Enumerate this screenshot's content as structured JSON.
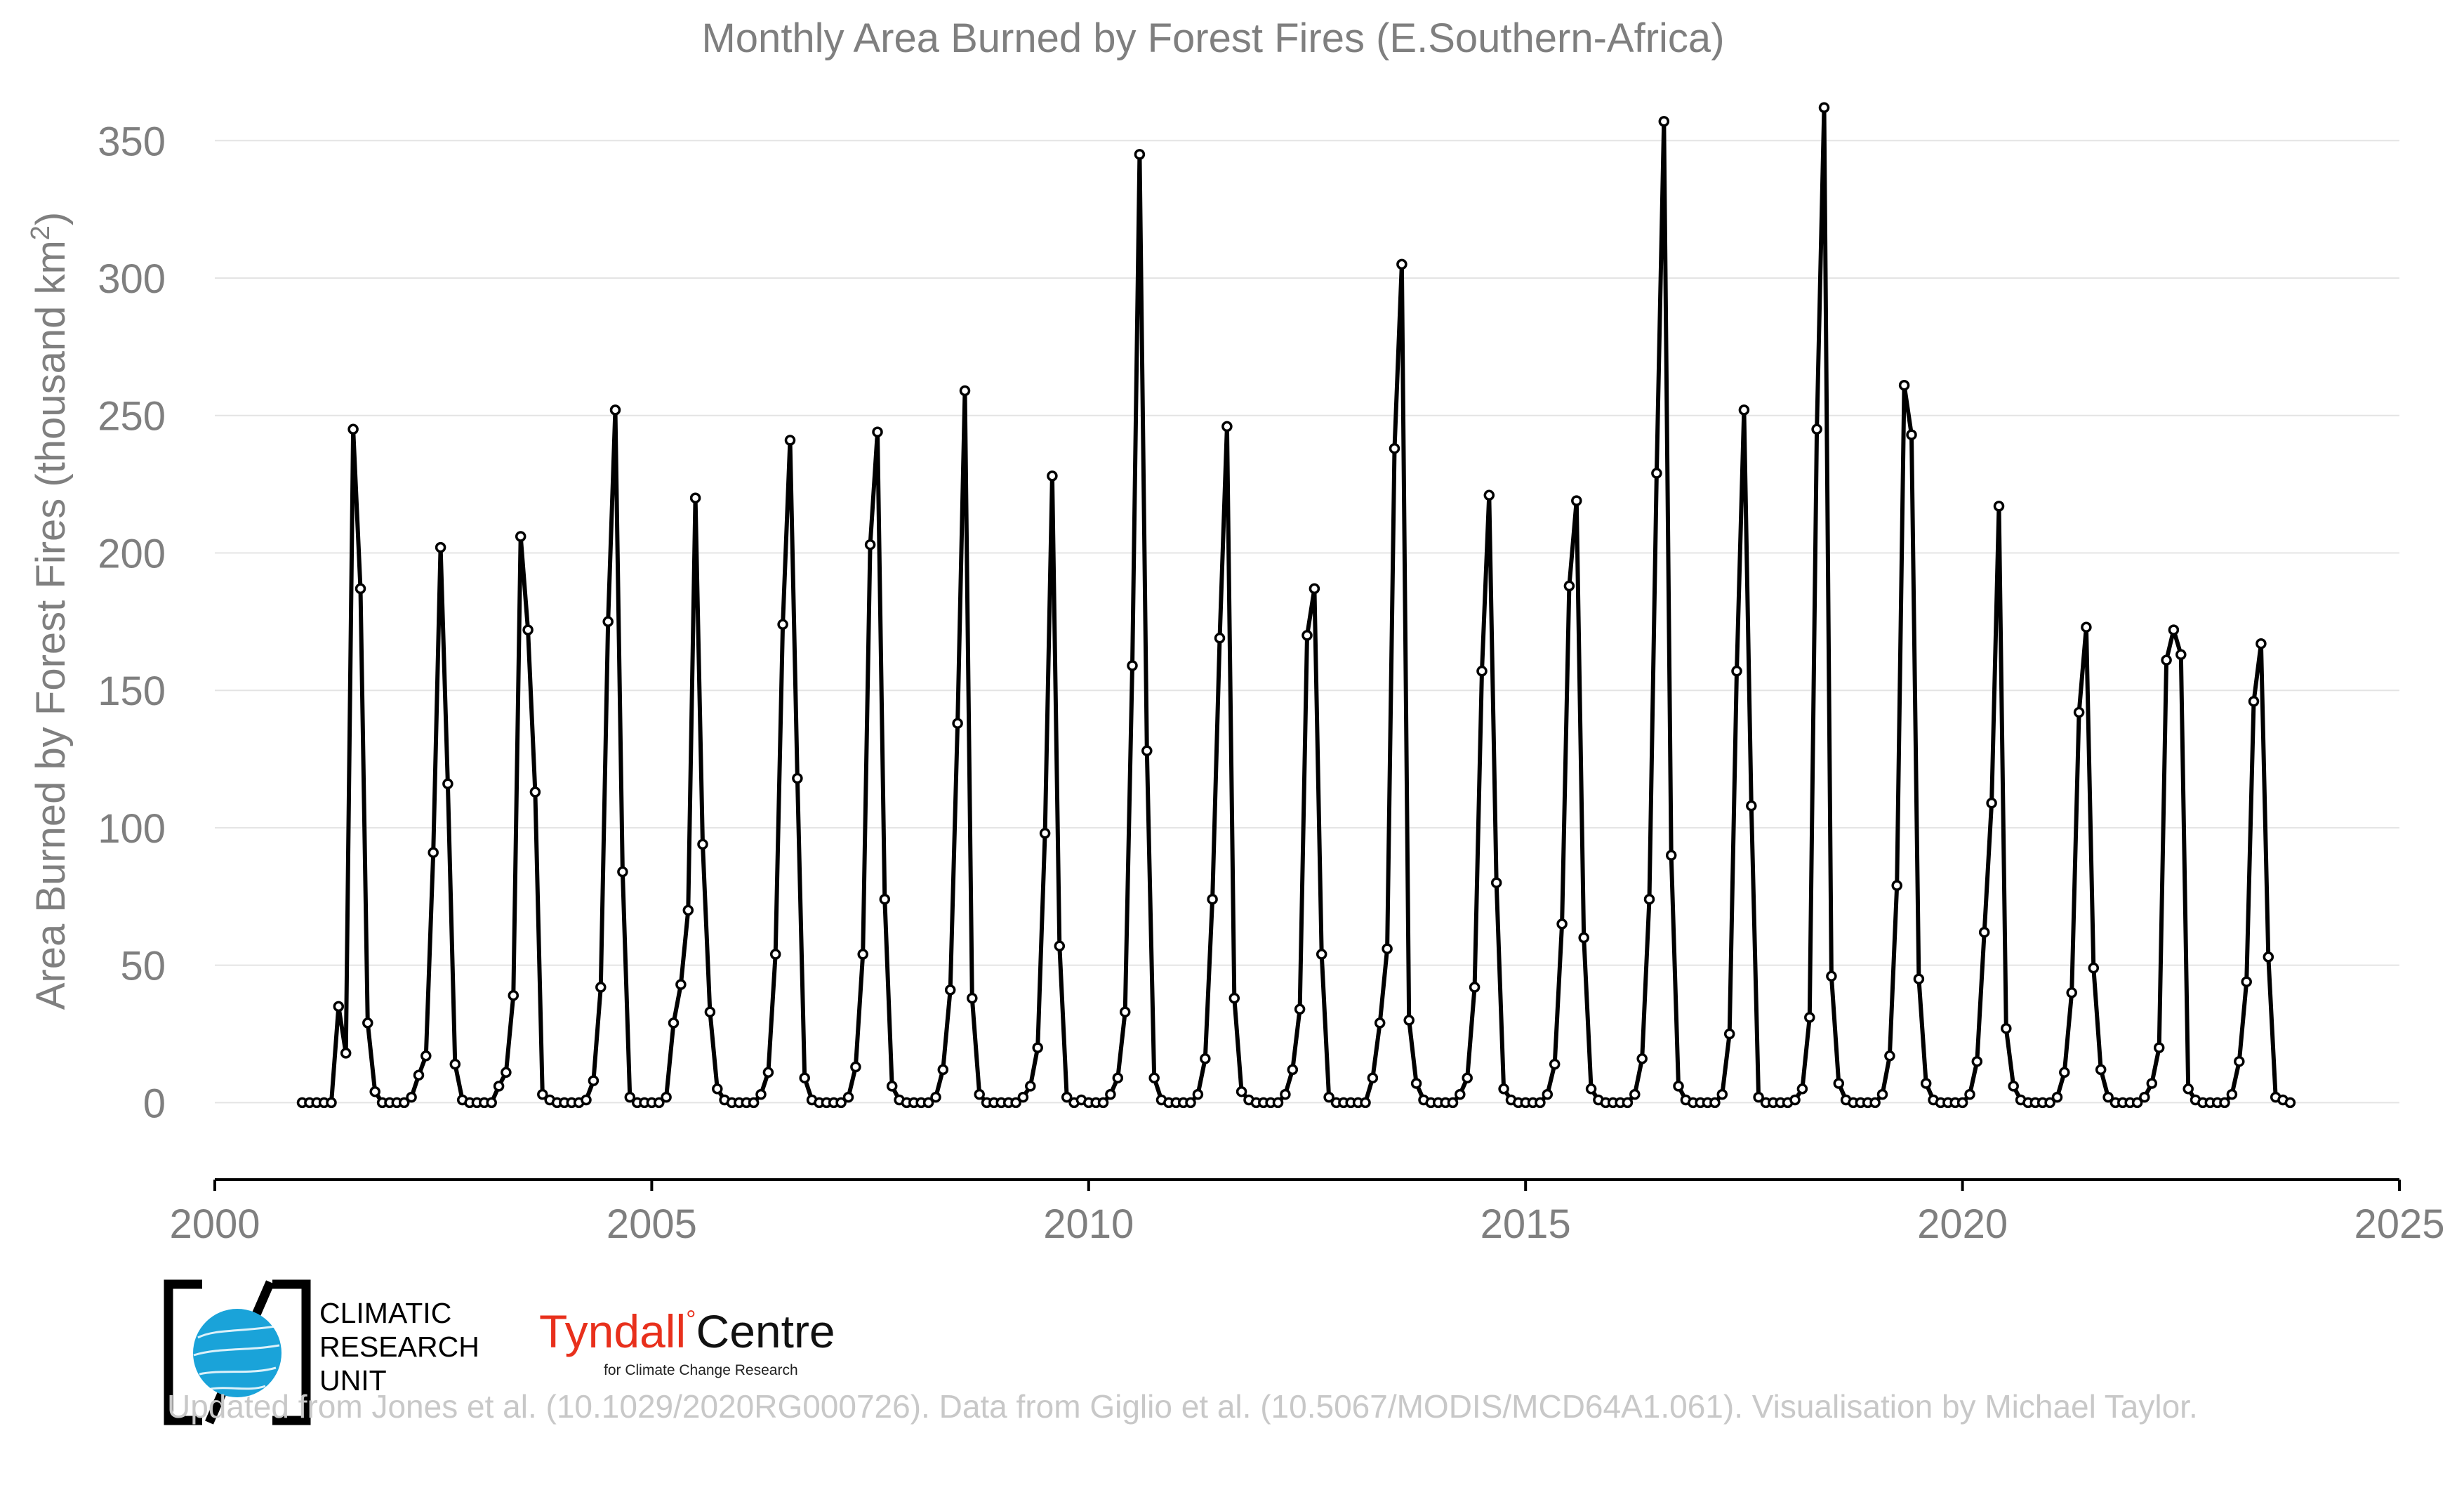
{
  "chart_data": {
    "type": "line",
    "title": "Monthly Area Burned by Forest Fires (E.Southern-Africa)",
    "ylabel": "Area Burned by Forest Fires (thousand km²)",
    "xlabel": "",
    "xlim": [
      2000,
      2025
    ],
    "ylim": [
      -28,
      370
    ],
    "xticks": [
      2000,
      2005,
      2010,
      2015,
      2020,
      2025
    ],
    "yticks": [
      0,
      50,
      100,
      150,
      200,
      250,
      300,
      350
    ],
    "grid": "horizontal",
    "x_start": "2001-01",
    "x_step": "1 month",
    "series": [
      {
        "values": [
          0,
          0,
          0,
          0,
          0,
          35,
          18,
          245,
          187,
          29,
          4,
          0,
          0,
          0,
          0,
          2,
          10,
          17,
          91,
          202,
          116,
          14,
          1,
          0,
          0,
          0,
          0,
          6,
          11,
          39,
          206,
          172,
          113,
          3,
          1,
          0,
          0,
          0,
          0,
          1,
          8,
          42,
          175,
          252,
          84,
          2,
          0,
          0,
          0,
          0,
          2,
          29,
          43,
          70,
          220,
          94,
          33,
          5,
          1,
          0,
          0,
          0,
          0,
          3,
          11,
          54,
          174,
          241,
          118,
          9,
          1,
          0,
          0,
          0,
          0,
          2,
          13,
          54,
          203,
          244,
          74,
          6,
          1,
          0,
          0,
          0,
          0,
          2,
          12,
          41,
          138,
          259,
          38,
          3,
          0,
          0,
          0,
          0,
          0,
          2,
          6,
          20,
          98,
          228,
          57,
          2,
          0,
          1,
          0,
          0,
          0,
          3,
          9,
          33,
          159,
          345,
          128,
          9,
          1,
          0,
          0,
          0,
          0,
          3,
          16,
          74,
          169,
          246,
          38,
          4,
          1,
          0,
          0,
          0,
          0,
          3,
          12,
          34,
          170,
          187,
          54,
          2,
          0,
          0,
          0,
          0,
          0,
          9,
          29,
          56,
          238,
          305,
          30,
          7,
          1,
          0,
          0,
          0,
          0,
          3,
          9,
          42,
          157,
          221,
          80,
          5,
          1,
          0,
          0,
          0,
          0,
          3,
          14,
          65,
          188,
          219,
          60,
          5,
          1,
          0,
          0,
          0,
          0,
          3,
          16,
          74,
          229,
          357,
          90,
          6,
          1,
          0,
          0,
          0,
          0,
          3,
          25,
          157,
          252,
          108,
          2,
          0,
          0,
          0,
          0,
          1,
          5,
          31,
          245,
          362,
          46,
          7,
          1,
          0,
          0,
          0,
          0,
          3,
          17,
          79,
          261,
          243,
          45,
          7,
          1,
          0,
          0,
          0,
          0,
          3,
          15,
          62,
          109,
          217,
          27,
          6,
          1,
          0,
          0,
          0,
          0,
          2,
          11,
          40,
          142,
          173,
          49,
          12,
          2,
          0,
          0,
          0,
          0,
          2,
          7,
          20,
          161,
          172,
          163,
          5,
          1,
          0,
          0,
          0,
          0,
          3,
          15,
          44,
          146,
          167,
          53,
          2,
          1,
          0
        ]
      }
    ]
  },
  "footer": {
    "credit": "Updated from Jones et al. (10.1029/2020RG000726). Data from Giglio et al. (10.5067/MODIS/MCD64A1.061). Visualisation by Michael Taylor.",
    "cru_lines": [
      "CLIMATIC",
      "RESEARCH",
      "UNIT"
    ],
    "tyndall_name": "Tyndall",
    "tyndall_centre": "Centre",
    "tyndall_sub": "for Climate Change Research"
  },
  "colors": {
    "line": "#000000",
    "text": "#7f7f7f",
    "credit": "#c8c8c8",
    "tyndall_red": "#e8301c",
    "cru_blue": "#1aa3d9"
  }
}
